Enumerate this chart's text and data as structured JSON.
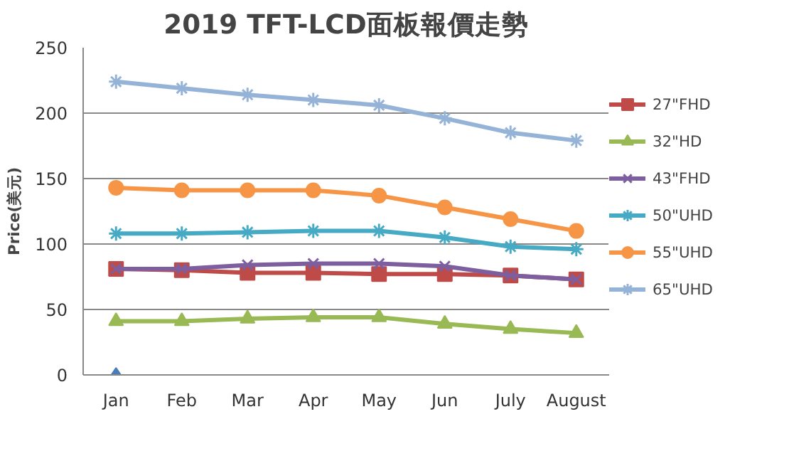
{
  "chart_data": {
    "type": "line",
    "title": "2019 TFT-LCD面板報價走勢",
    "ylabel": "Price(美元)",
    "categories": [
      "Jan",
      "Feb",
      "Mar",
      "Apr",
      "May",
      "Jun",
      "July",
      "August"
    ],
    "ylim": [
      0,
      250
    ],
    "yticks": [
      0,
      50,
      100,
      150,
      200,
      250
    ],
    "grid": "y",
    "legend": "right",
    "series": [
      {
        "name": "27\"FHD",
        "color": "#be4b48",
        "marker": "square",
        "values": [
          81,
          80,
          78,
          78,
          77,
          77,
          76,
          73
        ]
      },
      {
        "name": "32\"HD",
        "color": "#98b954",
        "marker": "triangle",
        "values": [
          41,
          41,
          43,
          44,
          44,
          39,
          35,
          32
        ]
      },
      {
        "name": "43\"FHD",
        "color": "#7d5fa0",
        "marker": "x",
        "values": [
          81,
          81,
          84,
          85,
          85,
          83,
          76,
          73
        ]
      },
      {
        "name": "50\"UHD",
        "color": "#46aac5",
        "marker": "cross",
        "values": [
          108,
          108,
          109,
          110,
          110,
          105,
          98,
          96
        ]
      },
      {
        "name": "55\"UHD",
        "color": "#f69546",
        "marker": "circle",
        "values": [
          143,
          141,
          141,
          141,
          137,
          128,
          119,
          110
        ]
      },
      {
        "name": "65\"UHD",
        "color": "#95b3d7",
        "marker": "cross",
        "values": [
          224,
          219,
          214,
          210,
          206,
          196,
          185,
          179
        ]
      },
      {
        "type": "scatter",
        "color": "#4a7ebb",
        "marker": "diamond",
        "values": [
          0,
          null,
          null,
          null,
          null,
          null,
          null,
          null
        ]
      }
    ]
  }
}
